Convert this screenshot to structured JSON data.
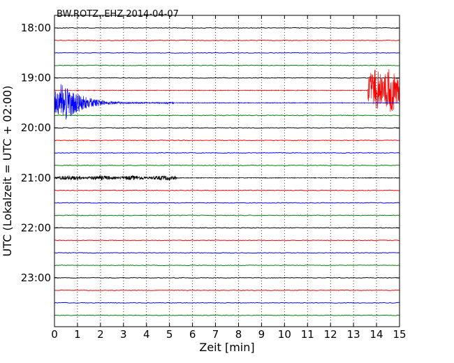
{
  "chart_data": {
    "type": "line",
    "subtype": "seismic-helicorder",
    "title": "BW.ROTZ..EHZ 2014-04-07",
    "xlabel": "Zeit  [min]",
    "ylabel": "UTC (Lokalzeit = UTC + 02:00)",
    "xlim": [
      0,
      15
    ],
    "x_ticks": [
      0,
      1,
      2,
      3,
      4,
      5,
      6,
      7,
      8,
      9,
      10,
      11,
      12,
      13,
      14,
      15
    ],
    "x_tick_labels": [
      "0",
      "1",
      "2",
      "3",
      "4",
      "5",
      "6",
      "7",
      "8",
      "9",
      "10",
      "11",
      "12",
      "13",
      "14",
      "15"
    ],
    "y_tick_labels": [
      "18:00",
      "19:00",
      "20:00",
      "21:00",
      "22:00",
      "23:00"
    ],
    "grid": "vertical dotted at each minute",
    "line_interval_minutes": 15,
    "trace_color_cycle": [
      "#000000",
      "#ff0000",
      "#0000ff",
      "#008000"
    ],
    "traces": [
      {
        "start": "18:00",
        "color": "#000000",
        "amplitude": "quiet"
      },
      {
        "start": "18:15",
        "color": "#ff0000",
        "amplitude": "quiet"
      },
      {
        "start": "18:30",
        "color": "#0000ff",
        "amplitude": "quiet"
      },
      {
        "start": "18:45",
        "color": "#008000",
        "amplitude": "quiet"
      },
      {
        "start": "19:00",
        "color": "#000000",
        "amplitude": "quiet"
      },
      {
        "start": "19:15",
        "color": "#ff0000",
        "amplitude": "quiet",
        "events": [
          {
            "x_start": 13.6,
            "x_end": 15,
            "peak": 2.5,
            "kind": "burst"
          }
        ]
      },
      {
        "start": "19:30",
        "color": "#0000ff",
        "amplitude": "quiet",
        "events": [
          {
            "x_start": 0,
            "x_end": 5.2,
            "peak": 2.5,
            "kind": "decay"
          }
        ]
      },
      {
        "start": "19:45",
        "color": "#008000",
        "amplitude": "quiet"
      },
      {
        "start": "20:00",
        "color": "#000000",
        "amplitude": "quiet"
      },
      {
        "start": "20:15",
        "color": "#ff0000",
        "amplitude": "quiet"
      },
      {
        "start": "20:30",
        "color": "#0000ff",
        "amplitude": "quiet"
      },
      {
        "start": "20:45",
        "color": "#008000",
        "amplitude": "quiet"
      },
      {
        "start": "21:00",
        "color": "#000000",
        "amplitude": "quiet",
        "events": [
          {
            "x_start": 0,
            "x_end": 5.3,
            "peak": 0.25,
            "kind": "noise"
          }
        ]
      },
      {
        "start": "21:15",
        "color": "#ff0000",
        "amplitude": "quiet"
      },
      {
        "start": "21:30",
        "color": "#0000ff",
        "amplitude": "quiet"
      },
      {
        "start": "21:45",
        "color": "#008000",
        "amplitude": "quiet"
      },
      {
        "start": "22:00",
        "color": "#000000",
        "amplitude": "quiet"
      },
      {
        "start": "22:15",
        "color": "#ff0000",
        "amplitude": "quiet"
      },
      {
        "start": "22:30",
        "color": "#0000ff",
        "amplitude": "quiet"
      },
      {
        "start": "22:45",
        "color": "#008000",
        "amplitude": "quiet"
      },
      {
        "start": "23:00",
        "color": "#000000",
        "amplitude": "quiet"
      },
      {
        "start": "23:15",
        "color": "#ff0000",
        "amplitude": "quiet"
      },
      {
        "start": "23:30",
        "color": "#0000ff",
        "amplitude": "quiet"
      },
      {
        "start": "23:45",
        "color": "#008000",
        "amplitude": "quiet"
      }
    ]
  }
}
